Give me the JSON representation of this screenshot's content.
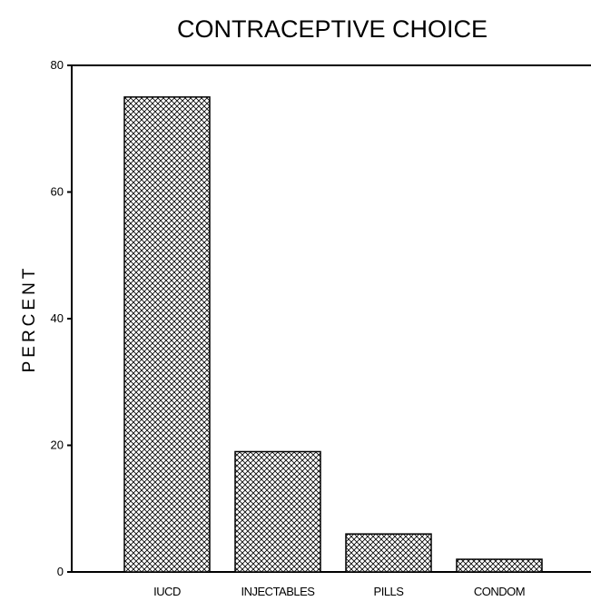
{
  "chart_data": {
    "type": "bar",
    "title": "CONTRACEPTIVE CHOICE",
    "xlabel": "",
    "ylabel": "PERCENT",
    "categories": [
      "IUCD",
      "INJECTABLES",
      "PILLS",
      "CONDOM"
    ],
    "values": [
      75,
      19,
      6,
      2
    ],
    "ylim": [
      0,
      80
    ],
    "yticks": [
      "0",
      "20",
      "40",
      "60",
      "80"
    ],
    "grid": false,
    "legend": "none",
    "bar_fill": "crosshatch",
    "colors": {
      "bar_stroke": "#000000",
      "hatch": "#000000",
      "background": "#ffffff"
    }
  }
}
